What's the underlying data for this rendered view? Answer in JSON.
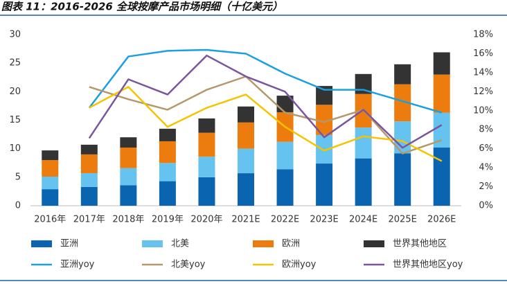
{
  "chart_data": {
    "type": "bar",
    "stacked": true,
    "title": "图表 11：2016-2026 全球按摩产品市场明细（十亿美元）",
    "categories": [
      "2016年",
      "2017年",
      "2018年",
      "2019年",
      "2020年",
      "2021E",
      "2022E",
      "2023E",
      "2024E",
      "2025E",
      "2026E"
    ],
    "series": [
      {
        "name": "亚洲",
        "type": "bar",
        "color": "#0a64b0",
        "values": [
          2.9,
          3.3,
          3.6,
          4.3,
          5.0,
          5.7,
          6.4,
          7.4,
          8.3,
          9.2,
          10.2
        ]
      },
      {
        "name": "北美",
        "type": "bar",
        "color": "#66c3f0",
        "values": [
          2.2,
          2.4,
          3.0,
          3.2,
          3.6,
          4.3,
          4.8,
          5.0,
          5.4,
          5.6,
          6.1
        ]
      },
      {
        "name": "欧洲",
        "type": "bar",
        "color": "#ec7c0e",
        "values": [
          2.9,
          3.3,
          3.6,
          3.8,
          4.2,
          4.6,
          5.2,
          5.3,
          5.9,
          6.5,
          6.7
        ]
      },
      {
        "name": "世界其他地区",
        "type": "bar",
        "color": "#333333",
        "values": [
          1.7,
          1.7,
          1.8,
          2.2,
          2.5,
          2.8,
          2.9,
          3.3,
          3.5,
          3.5,
          3.9
        ]
      },
      {
        "name": "亚洲yoy",
        "type": "line",
        "axis": "y2",
        "color": "#1aa0e0",
        "values": [
          null,
          10.3,
          15.7,
          16.3,
          16.4,
          16.0,
          13.9,
          12.2,
          12.2,
          11.0,
          9.8
        ]
      },
      {
        "name": "北美yoy",
        "type": "line",
        "axis": "y2",
        "color": "#b5986a",
        "values": [
          null,
          12.5,
          11.2,
          10.1,
          12.2,
          13.6,
          9.8,
          8.8,
          10.1,
          5.5,
          6.9
        ]
      },
      {
        "name": "欧洲yoy",
        "type": "line",
        "axis": "y2",
        "color": "#f5c400",
        "values": [
          null,
          10.3,
          12.5,
          8.3,
          10.3,
          11.7,
          8.3,
          5.8,
          7.3,
          6.8,
          4.7
        ]
      },
      {
        "name": "世界其他地区yoy",
        "type": "line",
        "axis": "y2",
        "color": "#7b559e",
        "values": [
          null,
          7.1,
          13.3,
          11.7,
          15.8,
          13.6,
          12.0,
          7.2,
          10.1,
          6.1,
          8.5
        ]
      }
    ],
    "ylim": [
      0,
      30
    ],
    "yticks": [
      0,
      5,
      10,
      15,
      20,
      25,
      30
    ],
    "y2lim": [
      0,
      18
    ],
    "y2ticks": [
      {
        "value": 0,
        "label": "0%"
      },
      {
        "value": 2,
        "label": "2%"
      },
      {
        "value": 4,
        "label": "4%"
      },
      {
        "value": 6,
        "label": "6%"
      },
      {
        "value": 8,
        "label": "8%"
      },
      {
        "value": 10,
        "label": "10%"
      },
      {
        "value": 12,
        "label": "12%"
      },
      {
        "value": 14,
        "label": "14%"
      },
      {
        "value": 16,
        "label": "16%"
      },
      {
        "value": 18,
        "label": "18%"
      }
    ],
    "grid": false
  }
}
